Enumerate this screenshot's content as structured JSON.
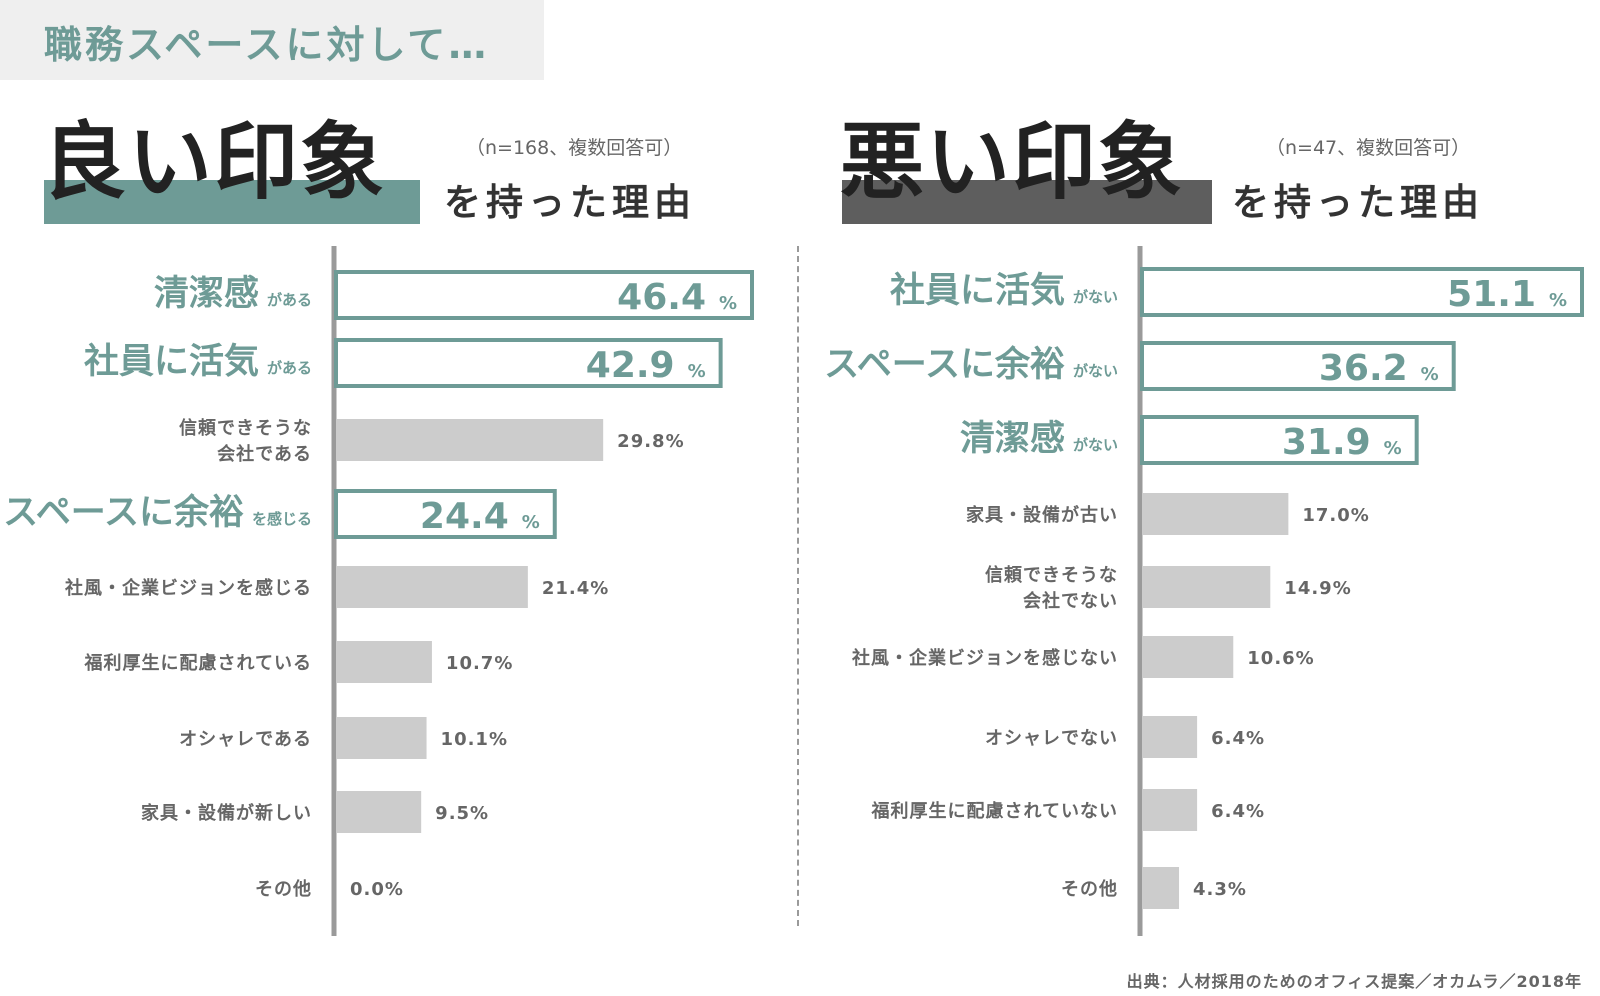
{
  "header": {
    "title": "職務スペースに対して…"
  },
  "colors": {
    "accent": "#6e9b96",
    "good_band": "#6e9b96",
    "bad_band": "#5e5e5e",
    "plain_bar": "#cccccc",
    "axis": "#9a9a9a"
  },
  "panels": {
    "good": {
      "title_main": "良い印象",
      "title_suffix": "を持った理由",
      "sample_note": "（n=168、複数回答可）"
    },
    "bad": {
      "title_main": "悪い印象",
      "title_suffix": "を持った理由",
      "sample_note": "（n=47、複数回答可）"
    }
  },
  "chart_data": [
    {
      "type": "bar",
      "orientation": "horizontal",
      "title": "良い印象を持った理由",
      "subtitle": "（n=168、複数回答可）",
      "unit": "%",
      "categories": [
        {
          "main": "清潔感",
          "suffix": "がある",
          "highlight": true
        },
        {
          "main": "社員に活気",
          "suffix": "がある",
          "highlight": true
        },
        {
          "lines": [
            "信頼できそうな",
            "会社である"
          ],
          "highlight": false
        },
        {
          "main": "スペースに余裕",
          "suffix": "を感じる",
          "highlight": true
        },
        {
          "lines": [
            "社風・企業ビジョンを感じる"
          ],
          "highlight": false
        },
        {
          "lines": [
            "福利厚生に配慮されている"
          ],
          "highlight": false
        },
        {
          "lines": [
            "オシャレである"
          ],
          "highlight": false
        },
        {
          "lines": [
            "家具・設備が新しい"
          ],
          "highlight": false
        },
        {
          "lines": [
            "その他"
          ],
          "highlight": false
        }
      ],
      "values": [
        46.4,
        42.9,
        29.8,
        24.4,
        21.4,
        10.7,
        10.1,
        9.5,
        0.0
      ]
    },
    {
      "type": "bar",
      "orientation": "horizontal",
      "title": "悪い印象を持った理由",
      "subtitle": "（n=47、複数回答可）",
      "unit": "%",
      "categories": [
        {
          "main": "社員に活気",
          "suffix": "がない",
          "highlight": true
        },
        {
          "main": "スペースに余裕",
          "suffix": "がない",
          "highlight": true
        },
        {
          "main": "清潔感",
          "suffix": "がない",
          "highlight": true
        },
        {
          "lines": [
            "家具・設備が古い"
          ],
          "highlight": false
        },
        {
          "lines": [
            "信頼できそうな",
            "会社でない"
          ],
          "highlight": false
        },
        {
          "lines": [
            "社風・企業ビジョンを感じない"
          ],
          "highlight": false
        },
        {
          "lines": [
            "オシャレでない"
          ],
          "highlight": false
        },
        {
          "lines": [
            "福利厚生に配慮されていない"
          ],
          "highlight": false
        },
        {
          "lines": [
            "その他"
          ],
          "highlight": false
        }
      ],
      "values": [
        51.1,
        36.2,
        31.9,
        17.0,
        14.9,
        10.6,
        6.4,
        6.4,
        4.3
      ]
    }
  ],
  "footer": {
    "source": "出典：人材採用のためのオフィス提案／オカムラ／2018年"
  }
}
